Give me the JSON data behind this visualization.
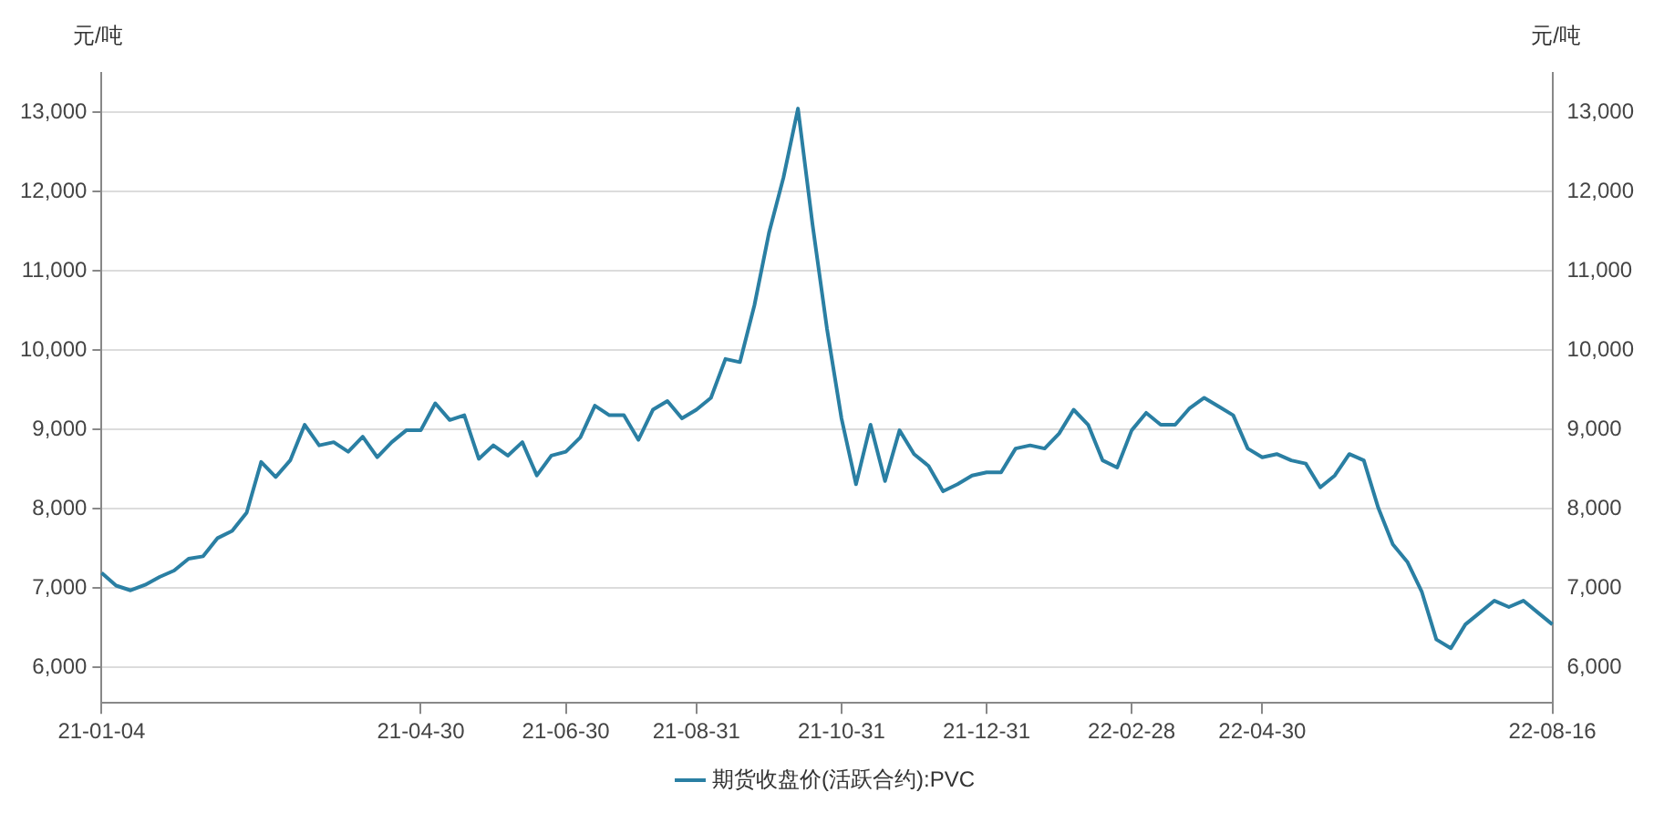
{
  "chart_data": {
    "type": "line",
    "ylabel": "元/吨",
    "y2label": "元/吨",
    "categories": [
      "21-01-04",
      null,
      null,
      null,
      null,
      null,
      null,
      null,
      null,
      null,
      null,
      null,
      null,
      null,
      null,
      null,
      null,
      null,
      null,
      null,
      null,
      null,
      "21-04-30",
      null,
      null,
      null,
      null,
      null,
      null,
      null,
      null,
      null,
      "21-06-30",
      null,
      null,
      null,
      null,
      null,
      null,
      null,
      null,
      "21-08-31",
      null,
      null,
      null,
      null,
      null,
      null,
      null,
      null,
      null,
      "21-10-31",
      null,
      null,
      null,
      null,
      null,
      null,
      null,
      null,
      null,
      "21-12-31",
      null,
      null,
      null,
      null,
      null,
      null,
      null,
      null,
      null,
      "22-02-28",
      null,
      null,
      null,
      null,
      null,
      null,
      null,
      null,
      "22-04-30",
      null,
      null,
      null,
      null,
      null,
      null,
      null,
      null,
      null,
      null,
      null,
      null,
      null,
      null,
      null,
      null,
      null,
      null,
      null,
      "22-08-16"
    ],
    "series": [
      {
        "name": "期货收盘价(活跃合约):PVC",
        "color": "#2a7fa3",
        "values": [
          7190,
          7030,
          6970,
          7040,
          7140,
          7220,
          7370,
          7400,
          7630,
          7720,
          7950,
          8590,
          8400,
          8610,
          9060,
          8800,
          8840,
          8720,
          8910,
          8650,
          8840,
          8990,
          8990,
          9330,
          9120,
          9180,
          8630,
          8800,
          8670,
          8840,
          8420,
          8670,
          8720,
          8900,
          9300,
          9180,
          9180,
          8870,
          9250,
          9360,
          9140,
          9250,
          9400,
          9890,
          9850,
          10570,
          11480,
          12180,
          13050,
          11590,
          10270,
          9140,
          8310,
          9060,
          8350,
          8990,
          8690,
          8540,
          8220,
          8310,
          8420,
          8460,
          8460,
          8760,
          8800,
          8760,
          8950,
          9250,
          9060,
          8610,
          8520,
          8990,
          9210,
          9060,
          9060,
          9270,
          9400,
          9290,
          9180,
          8760,
          8650,
          8690,
          8610,
          8570,
          8270,
          8420,
          8690,
          8610,
          8010,
          7550,
          7330,
          6950,
          6350,
          6240,
          6540,
          6690,
          6840,
          6760,
          6840,
          6690,
          6540
        ]
      }
    ],
    "ylim": [
      5550,
      13500
    ],
    "yticks": [
      {
        "value": 6000,
        "label": "6,000"
      },
      {
        "value": 7000,
        "label": "7,000"
      },
      {
        "value": 8000,
        "label": "8,000"
      },
      {
        "value": 9000,
        "label": "9,000"
      },
      {
        "value": 10000,
        "label": "10,000"
      },
      {
        "value": 11000,
        "label": "11,000"
      },
      {
        "value": 12000,
        "label": "12,000"
      },
      {
        "value": 13000,
        "label": "13,000"
      }
    ],
    "y2lim": [
      5550,
      13500
    ],
    "y2ticks": [
      {
        "value": 6000,
        "label": "6,000"
      },
      {
        "value": 7000,
        "label": "7,000"
      },
      {
        "value": 8000,
        "label": "8,000"
      },
      {
        "value": 9000,
        "label": "9,000"
      },
      {
        "value": 10000,
        "label": "10,000"
      },
      {
        "value": 11000,
        "label": "11,000"
      },
      {
        "value": 12000,
        "label": "12,000"
      },
      {
        "value": 13000,
        "label": "13,000"
      }
    ],
    "grid": "y",
    "legend": "bottom",
    "marker": "none",
    "line_style": "solid"
  }
}
